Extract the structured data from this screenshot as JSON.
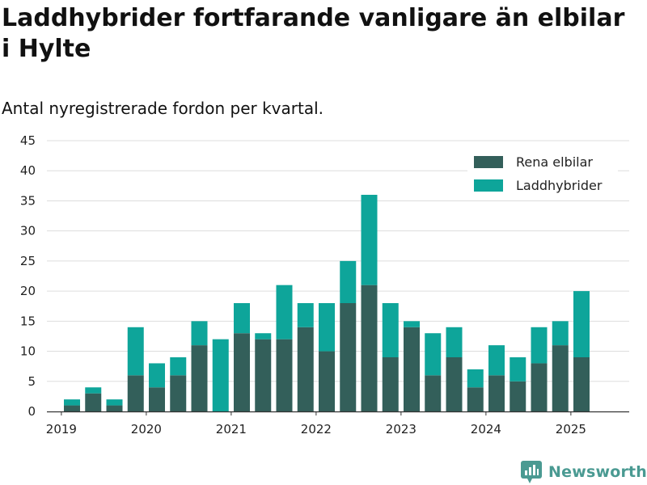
{
  "header": {
    "title": "Laddhybrider fortfarande vanligare än elbilar i Hylte",
    "subtitle": "Antal nyregistrerade fordon per kvartal."
  },
  "brand": {
    "name": "Newsworthy",
    "icon": "newsworthy-logo-icon"
  },
  "colors": {
    "series1": "#335f5a",
    "series2": "#0ea59a",
    "grid": "#dddddd",
    "axis": "#333333"
  },
  "chart_data": {
    "type": "bar",
    "stacked": true,
    "title": "Laddhybrider fortfarande vanligare än elbilar i Hylte",
    "subtitle": "Antal nyregistrerade fordon per kvartal.",
    "xlabel": "",
    "ylabel": "",
    "ylim": [
      0,
      45
    ],
    "yticks": [
      0,
      5,
      10,
      15,
      20,
      25,
      30,
      35,
      40,
      45
    ],
    "grid": true,
    "legend_position": "top-right",
    "x_tick_labels": [
      "2019",
      "2020",
      "2021",
      "2022",
      "2023",
      "2024",
      "2025"
    ],
    "categories": [
      "2019-Q1",
      "2019-Q2",
      "2019-Q3",
      "2019-Q4",
      "2020-Q1",
      "2020-Q2",
      "2020-Q3",
      "2020-Q4",
      "2021-Q1",
      "2021-Q2",
      "2021-Q3",
      "2021-Q4",
      "2022-Q1",
      "2022-Q2",
      "2022-Q3",
      "2022-Q4",
      "2023-Q1",
      "2023-Q2",
      "2023-Q3",
      "2023-Q4",
      "2024-Q1",
      "2024-Q2",
      "2024-Q3",
      "2024-Q4",
      "2025-Q1",
      "2025-Q2"
    ],
    "series": [
      {
        "name": "Rena elbilar",
        "values": [
          1,
          3,
          1,
          6,
          4,
          6,
          11,
          0,
          13,
          12,
          12,
          14,
          10,
          18,
          21,
          9,
          14,
          6,
          9,
          4,
          6,
          5,
          8,
          11,
          9,
          0
        ]
      },
      {
        "name": "Laddhybrider",
        "values": [
          1,
          1,
          1,
          8,
          4,
          3,
          4,
          12,
          5,
          1,
          9,
          4,
          8,
          7,
          15,
          9,
          1,
          7,
          5,
          3,
          5,
          4,
          6,
          4,
          11,
          0
        ]
      }
    ]
  }
}
